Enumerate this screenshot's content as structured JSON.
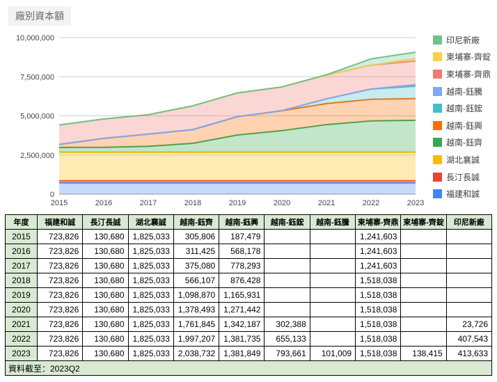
{
  "title": "廠別資本額",
  "footer": "資料截至：2023Q2",
  "chart_data": {
    "type": "area",
    "stacked": true,
    "title": "廠別資本額",
    "x": [
      "2015",
      "2016",
      "2017",
      "2018",
      "2019",
      "2020",
      "2021",
      "2022",
      "2023"
    ],
    "y_ticks": [
      "0",
      "2,500,000",
      "5,000,000",
      "7,500,000",
      "10,000,000"
    ],
    "ylim": [
      0,
      10000000
    ],
    "grid": true,
    "legend_position": "right",
    "fill_opacity": 0.3,
    "series": [
      {
        "name": "福建和誠",
        "color": "#4285F4",
        "values": [
          723826,
          723826,
          723826,
          723826,
          723826,
          723826,
          723826,
          723826,
          723826
        ]
      },
      {
        "name": "長汀長誠",
        "color": "#EA4335",
        "values": [
          130680,
          130680,
          130680,
          130680,
          130680,
          130680,
          130680,
          130680,
          130680
        ]
      },
      {
        "name": "湖北襄誠",
        "color": "#FBBC04",
        "values": [
          1825033,
          1825033,
          1825033,
          1825033,
          1825033,
          1825033,
          1825033,
          1825033,
          1825033
        ]
      },
      {
        "name": "越南-鈺齊",
        "color": "#34A853",
        "values": [
          305806,
          311425,
          375080,
          566107,
          1098870,
          1378493,
          1761845,
          1997207,
          2038732
        ]
      },
      {
        "name": "越南-鈺興",
        "color": "#FF6D01",
        "values": [
          187479,
          568178,
          778293,
          876428,
          1165931,
          1271442,
          1342187,
          1381735,
          1381849
        ]
      },
      {
        "name": "越南-鈺鋐",
        "color": "#46BDC6",
        "values": [
          0,
          0,
          0,
          0,
          0,
          0,
          302388,
          655133,
          793661
        ]
      },
      {
        "name": "越南-鈺騰",
        "color": "#7BAAF7",
        "values": [
          0,
          0,
          0,
          0,
          0,
          0,
          0,
          0,
          101009
        ]
      },
      {
        "name": "柬埔寨-齊鼎",
        "color": "#F07B72",
        "values": [
          1241603,
          1241603,
          1241603,
          1518038,
          1518038,
          1518038,
          1518038,
          1518038,
          1518038
        ]
      },
      {
        "name": "柬埔寨-齊錠",
        "color": "#FCD04F",
        "values": [
          0,
          0,
          0,
          0,
          0,
          0,
          0,
          0,
          138415
        ]
      },
      {
        "name": "印尼新廠",
        "color": "#71C287",
        "values": [
          0,
          0,
          0,
          0,
          0,
          0,
          23726,
          407543,
          413633
        ]
      }
    ]
  },
  "table": {
    "headers": [
      "年度",
      "福建和誠",
      "長汀長誠",
      "湖北襄誠",
      "越南-鈺齊",
      "越南-鈺興",
      "越南-鈺鋐",
      "越南-鈺騰",
      "柬埔寨-齊鼎",
      "柬埔寨-齊錠",
      "印尼新廠"
    ],
    "rows": [
      [
        "2015",
        "723,826",
        "130,680",
        "1,825,033",
        "305,806",
        "187,479",
        "",
        "",
        "1,241,603",
        "",
        ""
      ],
      [
        "2016",
        "723,826",
        "130,680",
        "1,825,033",
        "311,425",
        "568,178",
        "",
        "",
        "1,241,603",
        "",
        ""
      ],
      [
        "2017",
        "723,826",
        "130,680",
        "1,825,033",
        "375,080",
        "778,293",
        "",
        "",
        "1,241,603",
        "",
        ""
      ],
      [
        "2018",
        "723,826",
        "130,680",
        "1,825,033",
        "566,107",
        "876,428",
        "",
        "",
        "1,518,038",
        "",
        ""
      ],
      [
        "2019",
        "723,826",
        "130,680",
        "1,825,033",
        "1,098,870",
        "1,165,931",
        "",
        "",
        "1,518,038",
        "",
        ""
      ],
      [
        "2020",
        "723,826",
        "130,680",
        "1,825,033",
        "1,378,493",
        "1,271,442",
        "",
        "",
        "1,518,038",
        "",
        ""
      ],
      [
        "2021",
        "723,826",
        "130,680",
        "1,825,033",
        "1,761,845",
        "1,342,187",
        "302,388",
        "",
        "1,518,038",
        "",
        "23,726"
      ],
      [
        "2022",
        "723,826",
        "130,680",
        "1,825,033",
        "1,997,207",
        "1,381,735",
        "655,133",
        "",
        "1,518,038",
        "",
        "407,543"
      ],
      [
        "2023",
        "723,826",
        "130,680",
        "1,825,033",
        "2,038,732",
        "1,381,849",
        "793,661",
        "101,009",
        "1,518,038",
        "138,415",
        "413,633"
      ]
    ]
  }
}
